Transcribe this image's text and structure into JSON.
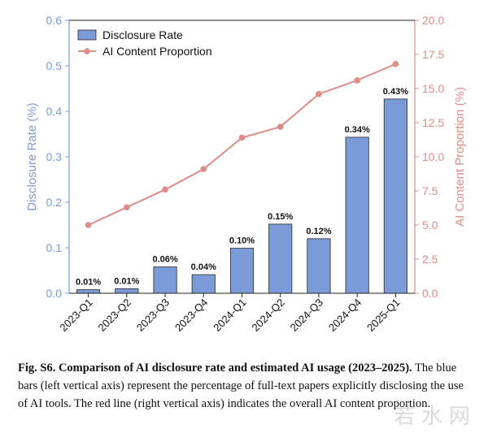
{
  "chart_data": {
    "type": "bar",
    "categories": [
      "2023-Q1",
      "2023-Q2",
      "2023-Q3",
      "2023-Q4",
      "2024-Q1",
      "2024-Q2",
      "2024-Q3",
      "2024-Q4",
      "2025-Q1"
    ],
    "series": [
      {
        "name": "Disclosure Rate",
        "type": "bar",
        "axis": "left",
        "values": [
          0.008,
          0.01,
          0.058,
          0.041,
          0.099,
          0.152,
          0.12,
          0.343,
          0.427
        ],
        "labels": [
          "0.01%",
          "0.01%",
          "0.06%",
          "0.04%",
          "0.10%",
          "0.15%",
          "0.12%",
          "0.34%",
          "0.43%"
        ],
        "color": "#7b9bd8"
      },
      {
        "name": "AI Content Proportion",
        "type": "line",
        "axis": "right",
        "values": [
          5.0,
          6.3,
          7.6,
          9.1,
          11.4,
          12.2,
          14.6,
          15.6,
          16.8
        ],
        "color": "#e08c86"
      }
    ],
    "ylabel_left": "Disclosure Rate (%)",
    "ylabel_right": "AI Content Proportion (%)",
    "ylim_left": [
      0,
      0.6
    ],
    "ylim_right": [
      0,
      20
    ],
    "yticks_left": [
      "0.0",
      "0.1",
      "0.2",
      "0.3",
      "0.4",
      "0.5",
      "0.6"
    ],
    "yticks_right": [
      "0.0",
      "2.5",
      "5.0",
      "7.5",
      "10.0",
      "12.5",
      "15.0",
      "17.5",
      "20.0"
    ],
    "legend_position": "top-left",
    "grid": false
  },
  "caption": {
    "bold": "Fig. S6. Comparison of AI disclosure rate and estimated AI usage (2023–2025).",
    "text": " The blue bars (left vertical axis) represent the percentage of full-text papers explicitly disclosing the use of AI tools. The red line (right vertical axis) indicates the overall AI content proportion."
  },
  "watermark": "若水网",
  "colors": {
    "left_axis": "#7b9bd8",
    "right_axis": "#e08c86",
    "bar": "#7b9bd8",
    "bar_edge": "#2a2a2a",
    "line": "#e08c86"
  }
}
